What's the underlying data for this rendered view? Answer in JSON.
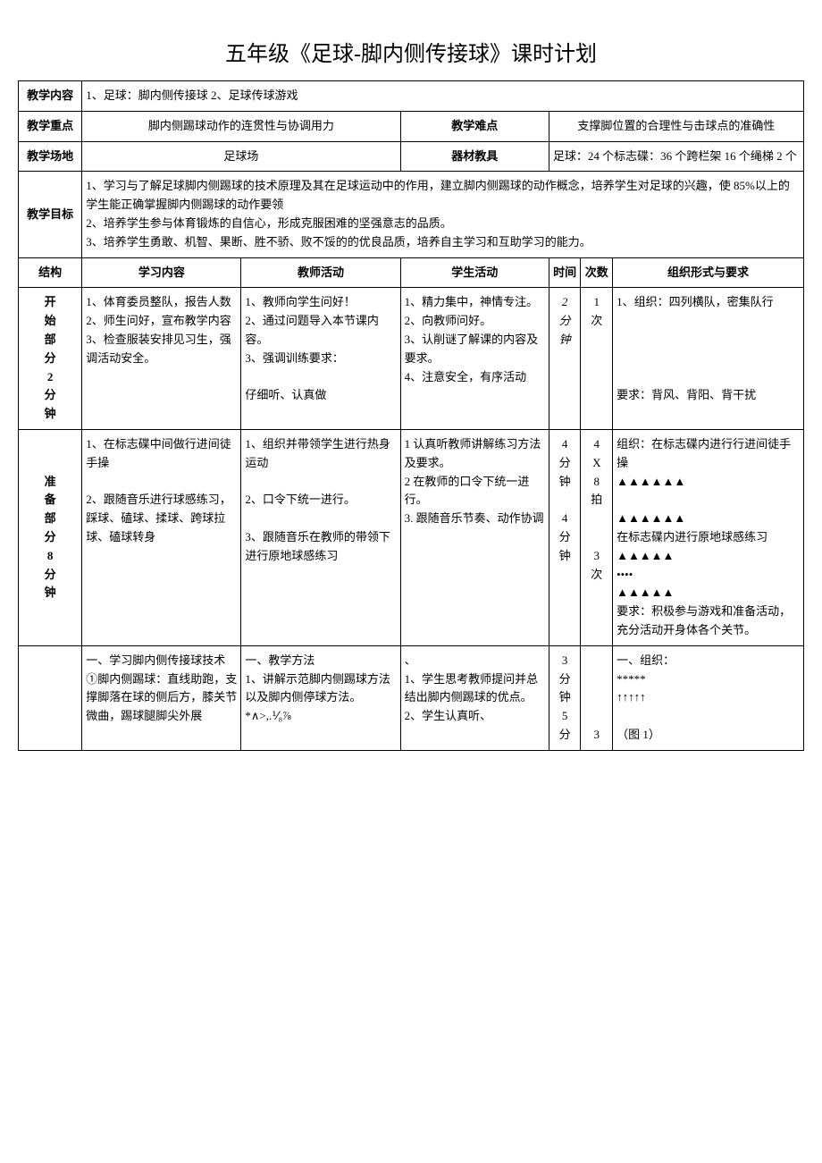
{
  "title": "五年级《足球-脚内侧传接球》课时计划",
  "header_rows": {
    "content_label": "教学内容",
    "content_value": "1、足球：脚内侧传接球 2、足球传球游戏",
    "focus_label": "教学重点",
    "focus_value": "脚内侧踢球动作的连贯性与协调用力",
    "difficulty_label": "教学难点",
    "difficulty_value": "支撑脚位置的合理性与击球点的准确性",
    "venue_label": "教学场地",
    "venue_value": "足球场",
    "equip_label": "器材教具",
    "equip_value": "足球：24 个标志碟：36 个跨栏架 16 个绳梯 2 个",
    "goal_label": "教学目标",
    "goal_value": "1、学习与了解足球脚内侧踢球的技术原理及其在足球运动中的作用，建立脚内侧踢球的动作概念，培养学生对足球的兴趣，使 85%以上的学生能正确掌握脚内侧踢球的动作要领\n2、培养学生参与体育锻炼的自信心，形成克服困难的坚强意志的品质。\n3、培养学生勇敢、机智、果断、胜不骄、败不馁的的优良品质，培养自主学习和互助学习的能力。"
  },
  "columns": {
    "struct": "结构",
    "study": "学习内容",
    "teacher": "教师活动",
    "student": "学生活动",
    "time": "时间",
    "count": "次数",
    "org": "组织形式与要求"
  },
  "rows": [
    {
      "struct": "开\n始\n部\n分\n2\n分\n钟",
      "study": "1、体育委员整队，报告人数\n2、师生问好，宣布教学内容\n3、检查服装安排见习生，强调活动安全。",
      "teacher": "1、教师向学生问好！\n2、通过问题导入本节课内容。\n3、强调训练要求：\n\n仔细听、认真做",
      "student": "1、精力集中，神情专注。\n2、向教师问好。\n3、认削谜了解课的内容及要求。\n4、注意安全，有序活动",
      "time": "2\n分\n钟",
      "count": "1\n次",
      "org": "1、组织：四列横队，密集队行\n\n\n\n\n要求：背风、背阳、背干扰"
    },
    {
      "struct": "准\n备\n部\n分\n8\n分\n钟",
      "study": "1、在标志碟中间做行进间徒手操\n\n2、跟随音乐进行球感练习，踩球、磕球、揉球、跨球拉球、磕球转身",
      "teacher": "1、组织并带领学生进行热身运动\n\n2、口令下统一进行。\n\n3、跟随音乐在教师的带领下进行原地球感练习",
      "student": "1 认真听教师讲解练习方法及要求。\n2 在教师的口令下统一进行。\n3. 跟随音乐节奏、动作协调",
      "time": "4\n分\n钟\n\n4\n分\n钟",
      "count": "4\nX\n8\n拍\n\n\n3\n次",
      "org": "组织：在标志碟内进行行进间徒手操\n▲▲▲▲▲▲\n\n▲▲▲▲▲▲\n在标志碟内进行原地球感练习\n▲▲▲▲▲\n••••\n▲▲▲▲▲\n要求：积极参与游戏和准备活动，充分活动开身体各个关节。"
    },
    {
      "struct": "",
      "study": "一、学习脚内侧传接球技术\n①脚内侧踢球：直线助跑，支撑脚落在球的侧后方，膝关节微曲，踢球腿脚尖外展",
      "teacher": "一、教学方法\n1、讲解示范脚内侧踢球方法以及脚内侧停球方法。\n*∧>,.⅟₈⅞",
      "student": "、\n1、学生思考教师提问并总结出脚内侧踢球的优点。\n2、学生认真听、",
      "time": "3\n分\n钟\n5\n分",
      "count": "\n\n\n\n3",
      "org": "一、组织：\n*****\n↑↑↑↑↑\n\n（图 1）"
    }
  ]
}
